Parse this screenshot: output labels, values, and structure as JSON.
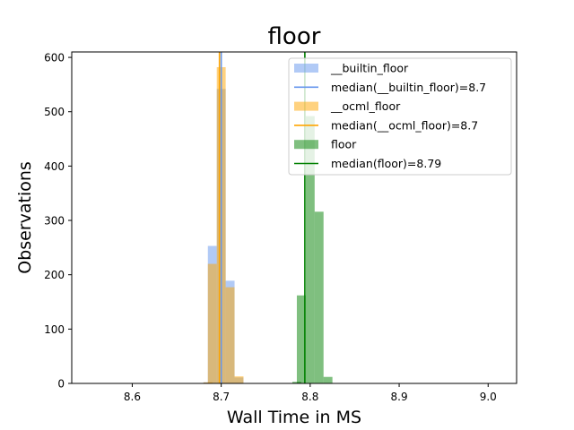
{
  "chart_data": {
    "type": "bar",
    "title": "floor",
    "xlabel": "Wall Time in MS",
    "ylabel": "Observations",
    "xlim": [
      8.532,
      9.032
    ],
    "ylim": [
      0,
      610
    ],
    "xticks": [
      "8.6",
      "8.7",
      "8.8",
      "8.9",
      "9.0"
    ],
    "yticks": [
      "0",
      "100",
      "200",
      "300",
      "400",
      "500",
      "600"
    ],
    "grid": false,
    "legend_position": "top-right",
    "bin_width": 0.01,
    "series": [
      {
        "name": "__builtin_floor",
        "color": "#6495ED",
        "alpha": 0.5,
        "bins": [
          [
            8.68,
            2
          ],
          [
            8.685,
            253
          ],
          [
            8.695,
            542
          ],
          [
            8.705,
            189
          ],
          [
            8.715,
            11
          ]
        ],
        "median": 8.7,
        "median_label": "median(__builtin_floor)=8.7",
        "median_color": "#6495ED"
      },
      {
        "name": "__ocml_floor",
        "color": "#FFA500",
        "alpha": 0.5,
        "bins": [
          [
            8.68,
            2
          ],
          [
            8.685,
            220
          ],
          [
            8.695,
            582
          ],
          [
            8.705,
            177
          ],
          [
            8.715,
            13
          ]
        ],
        "median": 8.698,
        "median_label": "median(__ocml_floor)=8.7",
        "median_color": "#FFA500"
      },
      {
        "name": "floor",
        "color": "#008000",
        "alpha": 0.5,
        "bins": [
          [
            8.78,
            3
          ],
          [
            8.785,
            162
          ],
          [
            8.795,
            492
          ],
          [
            8.805,
            316
          ],
          [
            8.815,
            12
          ]
        ],
        "median": 8.794,
        "median_label": "median(floor)=8.79",
        "median_color": "#008000"
      }
    ]
  }
}
